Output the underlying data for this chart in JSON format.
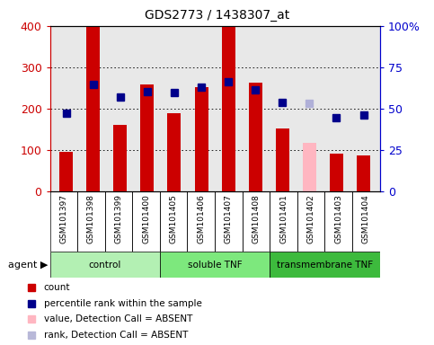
{
  "title": "GDS2773 / 1438307_at",
  "samples": [
    "GSM101397",
    "GSM101398",
    "GSM101399",
    "GSM101400",
    "GSM101405",
    "GSM101406",
    "GSM101407",
    "GSM101408",
    "GSM101401",
    "GSM101402",
    "GSM101403",
    "GSM101404"
  ],
  "bar_values": [
    95,
    400,
    160,
    258,
    190,
    252,
    398,
    262,
    152,
    118,
    92,
    88
  ],
  "bar_colors": [
    "#cc0000",
    "#cc0000",
    "#cc0000",
    "#cc0000",
    "#cc0000",
    "#cc0000",
    "#cc0000",
    "#cc0000",
    "#cc0000",
    "#ffb6c1",
    "#cc0000",
    "#cc0000"
  ],
  "rank_values": [
    190,
    258,
    228,
    242,
    238,
    252,
    266,
    246,
    216,
    212,
    178,
    185
  ],
  "rank_colors": [
    "#00008b",
    "#00008b",
    "#00008b",
    "#00008b",
    "#00008b",
    "#00008b",
    "#00008b",
    "#00008b",
    "#00008b",
    "#b0b0d8",
    "#00008b",
    "#00008b"
  ],
  "groups": [
    {
      "label": "control",
      "start": 0,
      "end": 4,
      "color": "#b3f0b3"
    },
    {
      "label": "soluble TNF",
      "start": 4,
      "end": 8,
      "color": "#7de87d"
    },
    {
      "label": "transmembrane TNF",
      "start": 8,
      "end": 12,
      "color": "#3dba3d"
    }
  ],
  "ylim_left": [
    0,
    400
  ],
  "ylim_right": [
    0,
    100
  ],
  "yticks_left": [
    0,
    100,
    200,
    300,
    400
  ],
  "yticks_right": [
    0,
    25,
    50,
    75,
    100
  ],
  "yticklabels_right": [
    "0",
    "25",
    "50",
    "75",
    "100%"
  ],
  "left_tick_color": "#cc0000",
  "right_tick_color": "#0000cc",
  "grid_color": "black",
  "plot_bg_color": "#e8e8e8",
  "xtick_bg_color": "#d0d0d0",
  "legend_items": [
    {
      "label": "count",
      "color": "#cc0000"
    },
    {
      "label": "percentile rank within the sample",
      "color": "#00008b"
    },
    {
      "label": "value, Detection Call = ABSENT",
      "color": "#ffb6c1"
    },
    {
      "label": "rank, Detection Call = ABSENT",
      "color": "#b8b8d8"
    }
  ]
}
